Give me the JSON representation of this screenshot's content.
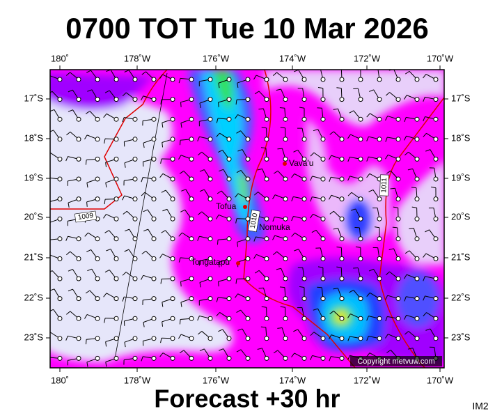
{
  "title": "0700 TOT Tue 10 Mar 2026",
  "longitude_labels": [
    "180˚",
    "178˚W",
    "176˚W",
    "174˚W",
    "172˚W",
    "170˚W"
  ],
  "latitude_labels": [
    "17˚S",
    "18˚S",
    "19˚S",
    "20˚S",
    "21˚S",
    "22˚S",
    "23˚S"
  ],
  "places": [
    "Vava'u",
    "Tofua",
    "Nomuka",
    "Tongatapu"
  ],
  "isobar_labels": [
    "1009",
    "1010",
    "1011"
  ],
  "copyright": "Copyright metvuw.com",
  "footer": "Forecast +30 hr",
  "image_id": "IM2"
}
